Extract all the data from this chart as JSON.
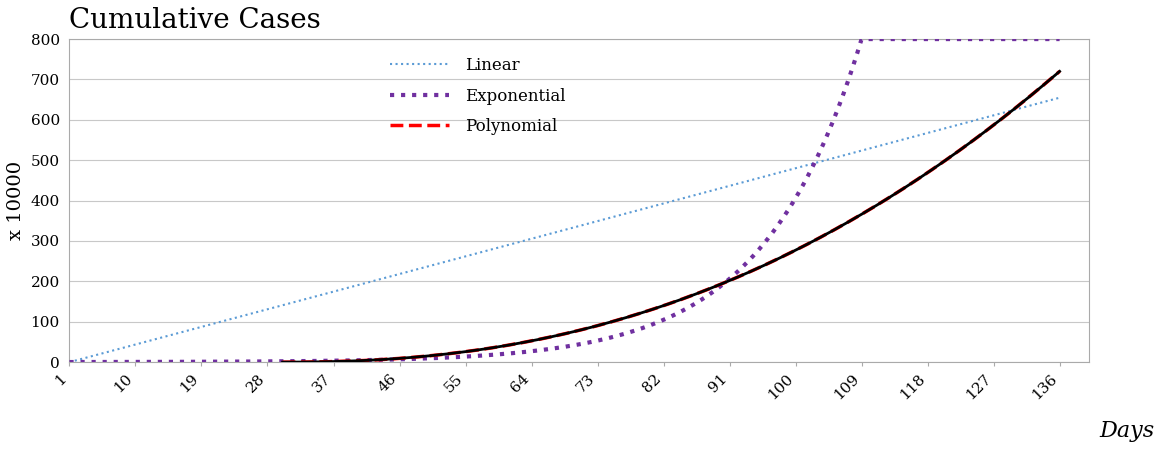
{
  "title": "Cumulative Cases",
  "xlabel": "Days",
  "ylabel": "x 10000",
  "x_ticks": [
    1,
    10,
    19,
    28,
    37,
    46,
    55,
    64,
    73,
    82,
    91,
    100,
    109,
    118,
    127,
    136
  ],
  "ylim": [
    0,
    800
  ],
  "yticks": [
    0,
    100,
    200,
    300,
    400,
    500,
    600,
    700,
    800
  ],
  "xlim": [
    1,
    140
  ],
  "background_color": "#ffffff",
  "grid_color": "#c8c8c8",
  "linear_color": "#5b9bd5",
  "exponential_color": "#7030a0",
  "polynomial_color": "#ff0000",
  "actual_color": "#000000",
  "legend_labels": [
    "Linear",
    "Exponential",
    "Polynomial"
  ],
  "title_fontsize": 20,
  "axis_label_fontsize": 14,
  "tick_fontsize": 11,
  "border_color": "#aaaaaa"
}
